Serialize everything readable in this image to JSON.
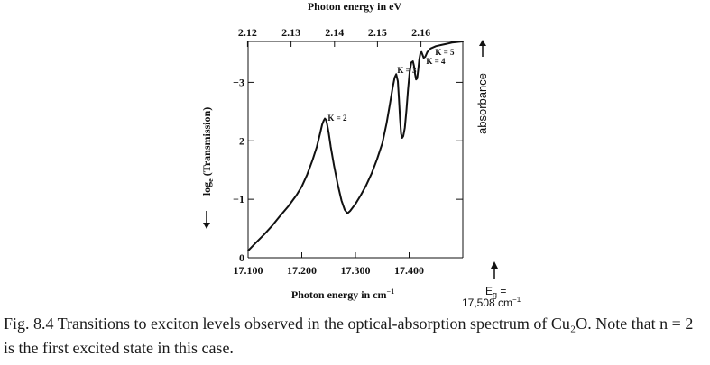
{
  "chart_data": {
    "type": "line",
    "top_axis": {
      "label": "Photon energy in eV",
      "tick_labels": [
        "2.12",
        "2.13",
        "2.14",
        "2.15",
        "2.16"
      ],
      "tick_wavenumbers": [
        17099,
        17180,
        17261,
        17341,
        17422
      ]
    },
    "bottom_axis": {
      "label": "Photon energy in cm",
      "label_superscript": "−1",
      "tick_labels": [
        "17.100",
        "17.200",
        "17.300",
        "17.400"
      ],
      "tick_values": [
        17100,
        17200,
        17300,
        17400
      ],
      "xlim": [
        17100,
        17500
      ]
    },
    "left_axis": {
      "label": "log",
      "label_subscript": "e",
      "label_tail": " (Transmission)",
      "tick_labels": [
        "0",
        "−1",
        "−2",
        "−3"
      ],
      "tick_values": [
        0,
        1,
        2,
        3
      ],
      "ylim": [
        0,
        3.7
      ]
    },
    "right_axis": {
      "label": "absorbance"
    },
    "annotations": [
      "K = 2",
      "K = 3",
      "K = 4",
      "K = 5"
    ],
    "gap_marker": {
      "label_main": "E",
      "label_sub": "g",
      "label_eq": " =",
      "value": "17,508 cm",
      "value_superscript": "−1"
    },
    "grid": false,
    "series": [
      {
        "x": [
          17100,
          17115,
          17130,
          17145,
          17160,
          17175,
          17190,
          17200,
          17210,
          17220,
          17228,
          17234,
          17238,
          17241,
          17243,
          17245,
          17247,
          17250,
          17254,
          17260,
          17267,
          17274,
          17280,
          17285,
          17290,
          17300,
          17310,
          17320,
          17330,
          17340,
          17350,
          17358,
          17364,
          17369,
          17373,
          17376,
          17379,
          17381,
          17383,
          17385,
          17387,
          17389,
          17392,
          17395,
          17398,
          17401,
          17404,
          17407,
          17409,
          17411,
          17413,
          17415,
          17417,
          17419,
          17421,
          17423,
          17425,
          17427,
          17430,
          17434,
          17440,
          17450,
          17460,
          17470,
          17480,
          17490,
          17500
        ],
        "y": [
          0.12,
          0.26,
          0.4,
          0.55,
          0.72,
          0.88,
          1.07,
          1.22,
          1.42,
          1.67,
          1.9,
          2.12,
          2.28,
          2.35,
          2.38,
          2.36,
          2.29,
          2.14,
          1.9,
          1.58,
          1.25,
          0.98,
          0.82,
          0.76,
          0.8,
          0.92,
          1.07,
          1.24,
          1.44,
          1.68,
          1.96,
          2.3,
          2.62,
          2.9,
          3.08,
          3.14,
          3.02,
          2.72,
          2.38,
          2.12,
          2.05,
          2.08,
          2.22,
          2.52,
          2.88,
          3.18,
          3.34,
          3.36,
          3.28,
          3.15,
          3.05,
          3.07,
          3.22,
          3.4,
          3.5,
          3.52,
          3.47,
          3.42,
          3.44,
          3.52,
          3.58,
          3.62,
          3.64,
          3.66,
          3.68,
          3.69,
          3.7
        ]
      }
    ]
  },
  "caption": "Fig. 8.4 Transitions to exciton levels observed in the optical-absorption spectrum of Cu₂O. Note that n = 2 is the first excited state in this case."
}
